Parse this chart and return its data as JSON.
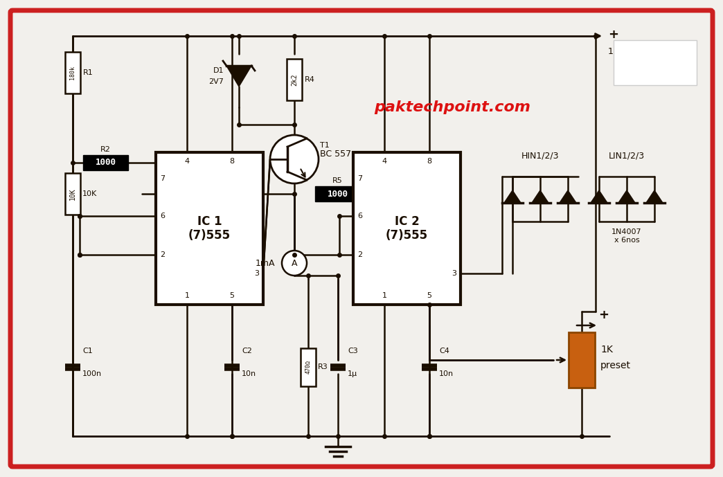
{
  "bg_color": "#f2f0ec",
  "border_color": "#cc2020",
  "title_text": "paktechpoint.com",
  "title_color": "#dd1111",
  "line_color": "#1a0e00",
  "ic1_label": "IC 1\n(7)555",
  "ic2_label": "IC 2\n(7)555",
  "r1_label": "180k",
  "r2_label": "1000",
  "r3_label": "470Ω",
  "r4_label": "2k2",
  "r5_label": "1000",
  "r_10k_label": "10K",
  "r_1k_label": "1K\npreset",
  "c1_label": "100n",
  "c2_label": "10n",
  "c3_label": "1μ",
  "c4_label": "10n",
  "d1_label": "D1\n2V7",
  "t1_label": "T1",
  "bc_label": "BC 557",
  "hin_label": "HIN1/2/3",
  "lin_label": "LIN1/2/3",
  "diode_label": "1N4007\nx 6nos",
  "ameter_label": "1mA",
  "vdc_label": "12V DC",
  "plus_label": "+"
}
